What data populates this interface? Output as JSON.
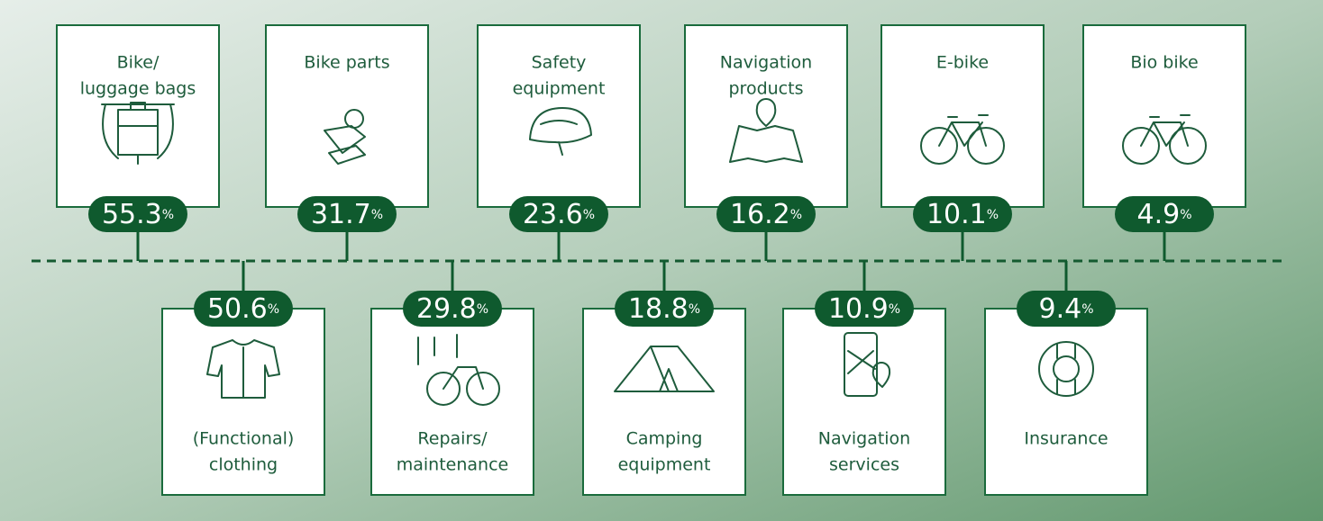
{
  "unit": "%",
  "top": [
    {
      "label": [
        "Bike/",
        "luggage bags"
      ],
      "value": 55.3
    },
    {
      "label": [
        "Bike parts"
      ],
      "value": 31.7
    },
    {
      "label": [
        "Safety",
        "equipment"
      ],
      "value": 23.6
    },
    {
      "label": [
        "Navigation",
        "products"
      ],
      "value": 16.2
    },
    {
      "label": [
        "E-bike"
      ],
      "value": 10.1
    },
    {
      "label": [
        "Bio bike"
      ],
      "value": 4.9
    }
  ],
  "bottom": [
    {
      "label": [
        "(Functional)",
        "clothing"
      ],
      "value": 50.6
    },
    {
      "label": [
        "Repairs/",
        "maintenance"
      ],
      "value": 29.8
    },
    {
      "label": [
        "Camping",
        "equipment"
      ],
      "value": 18.8
    },
    {
      "label": [
        "Navigation",
        "services"
      ],
      "value": 10.9
    },
    {
      "label": [
        "Insurance"
      ],
      "value": 9.4
    }
  ]
}
